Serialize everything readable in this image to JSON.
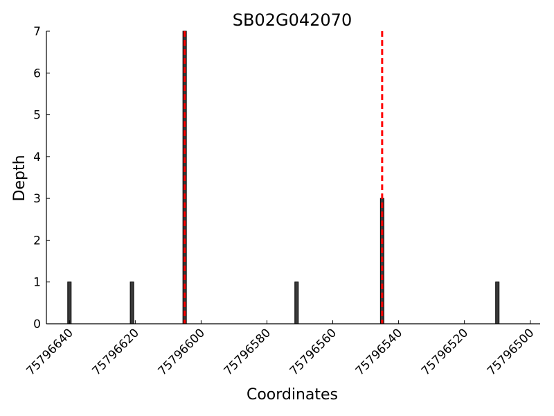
{
  "chart_data": {
    "type": "bar",
    "title": "SB02G042070",
    "xlabel": "Coordinates",
    "ylabel": "Depth",
    "x_reversed": true,
    "xlim": [
      75796647,
      75796497
    ],
    "ylim": [
      0,
      7
    ],
    "x_ticks": [
      75796640,
      75796620,
      75796600,
      75796580,
      75796560,
      75796540,
      75796520,
      75796500
    ],
    "y_ticks": [
      0,
      1,
      2,
      3,
      4,
      5,
      6,
      7
    ],
    "grid": false,
    "bars": [
      {
        "x": 75796640,
        "value": 1
      },
      {
        "x": 75796621,
        "value": 1
      },
      {
        "x": 75796605,
        "value": 7
      },
      {
        "x": 75796571,
        "value": 1
      },
      {
        "x": 75796545,
        "value": 3
      },
      {
        "x": 75796510,
        "value": 1
      }
    ],
    "bar_color": "#3a3a3a",
    "markers": [
      {
        "x": 75796605,
        "style": "dashed",
        "color": "#ff0000"
      },
      {
        "x": 75796545,
        "style": "dashed",
        "color": "#ff0000"
      }
    ]
  }
}
